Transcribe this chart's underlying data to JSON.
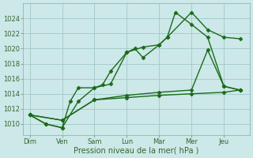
{
  "background_color": "#cde8e8",
  "grid_color": "#a0c8c8",
  "line_color": "#1a6b1a",
  "xlabel": "Pression niveau de la mer( hPa )",
  "ylim": [
    1008.5,
    1026.0
  ],
  "yticks": [
    1010,
    1012,
    1014,
    1016,
    1018,
    1020,
    1022,
    1024
  ],
  "days": [
    "Dim",
    "Ven",
    "Sam",
    "Lun",
    "Mar",
    "Mer",
    "Jeu"
  ],
  "day_x": [
    0,
    1,
    2,
    3,
    4,
    5,
    6
  ],
  "series1_x": [
    0,
    0.5,
    1.0,
    1.25,
    1.5,
    2.0,
    2.25,
    2.5,
    3.0,
    3.25,
    3.5,
    4.0,
    4.25,
    5.0,
    5.5,
    6.0,
    6.5
  ],
  "series1_y": [
    1011.2,
    1010.0,
    1009.5,
    1013.0,
    1014.8,
    1014.8,
    1015.2,
    1017.0,
    1019.5,
    1020.0,
    1018.8,
    1020.5,
    1021.5,
    1024.8,
    1022.5,
    1021.5,
    1021.3
  ],
  "series2_x": [
    0,
    0.5,
    1.0,
    1.5,
    2.0,
    2.5,
    3.0,
    3.5,
    4.0,
    4.25,
    4.5,
    5.0,
    5.5,
    6.0,
    6.5
  ],
  "series2_y": [
    1011.2,
    1010.0,
    1009.5,
    1013.0,
    1014.8,
    1015.3,
    1019.5,
    1020.2,
    1020.5,
    1021.5,
    1024.8,
    1023.2,
    1021.5,
    1015.0,
    1014.5
  ],
  "series3_x": [
    0,
    1.0,
    2.0,
    3.0,
    4.0,
    5.0,
    5.5,
    6.0,
    6.5
  ],
  "series3_y": [
    1011.2,
    1010.5,
    1013.2,
    1013.8,
    1014.2,
    1014.5,
    1019.8,
    1015.0,
    1014.5
  ],
  "series4_x": [
    0,
    1.0,
    2.0,
    3.0,
    4.0,
    5.0,
    6.0,
    6.5
  ],
  "series4_y": [
    1011.2,
    1010.5,
    1013.2,
    1013.5,
    1013.8,
    1014.0,
    1014.2,
    1014.5
  ],
  "marker_size": 2.5,
  "linewidth": 1.0
}
